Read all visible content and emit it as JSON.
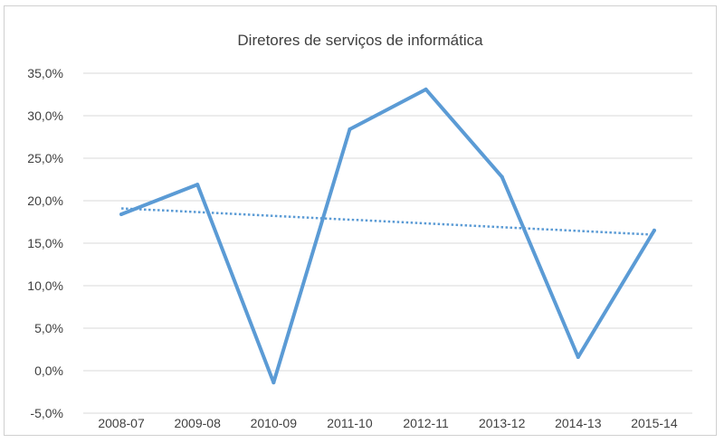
{
  "chart_data": {
    "type": "line",
    "title": "Diretores de serviços de informática",
    "xlabel": "",
    "ylabel": "",
    "categories": [
      "2008-07",
      "2009-08",
      "2010-09",
      "2011-10",
      "2012-11",
      "2013-12",
      "2014-13",
      "2015-14"
    ],
    "series": [
      {
        "values": [
          18.4,
          21.9,
          -1.4,
          28.4,
          33.1,
          22.8,
          1.6,
          16.5
        ],
        "color": "#5b9bd5",
        "style": "solid"
      }
    ],
    "trendline": {
      "type": "linear",
      "start": 19.1,
      "end": 16.0,
      "color": "#5b9bd5",
      "style": "dotted"
    },
    "ylim": [
      -5,
      35
    ],
    "y_ticks": [
      "-5,0%",
      "0,0%",
      "5,0%",
      "10,0%",
      "15,0%",
      "20,0%",
      "25,0%",
      "30,0%",
      "35,0%"
    ],
    "y_tick_values": [
      -5,
      0,
      5,
      10,
      15,
      20,
      25,
      30,
      35
    ],
    "grid": true,
    "legend": "none"
  }
}
